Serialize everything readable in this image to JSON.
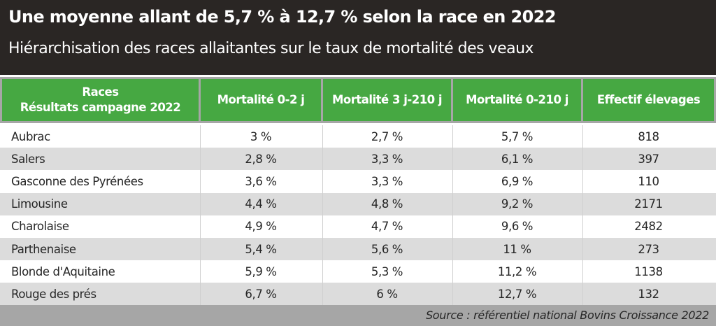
{
  "header": {
    "title": "Une moyenne allant de 5,7 % à 12,7 % selon la race en 2022",
    "subtitle": "Hiérarchisation des races allaitantes sur le taux de mortalité des veaux"
  },
  "table": {
    "columns": {
      "race_line1": "Races",
      "race_line2": "Résultats campagne 2022",
      "mort_0_2": "Mortalité 0-2 j",
      "mort_3_210": "Mortalité 3 j-210 j",
      "mort_0_210": "Mortalité 0-210 j",
      "effectif": "Effectif élevages"
    },
    "rows": [
      [
        "Aubrac",
        "3 %",
        "2,7 %",
        "5,7 %",
        "818"
      ],
      [
        "Salers",
        "2,8 %",
        "3,3 %",
        "6,1 %",
        "397"
      ],
      [
        "Gasconne des Pyrénées",
        "3,6 %",
        "3,3 %",
        "6,9 %",
        "110"
      ],
      [
        "Limousine",
        "4,4 %",
        "4,8 %",
        "9,2 %",
        "2171"
      ],
      [
        "Charolaise",
        "4,9 %",
        "4,7 %",
        "9,6 %",
        "2482"
      ],
      [
        "Parthenaise",
        "5,4 %",
        "5,6 %",
        "11 %",
        "273"
      ],
      [
        "Blonde d'Aquitaine",
        "5,9 %",
        "5,3 %",
        "11,2 %",
        "1138"
      ],
      [
        "Rouge des prés",
        "6,7 %",
        "6 %",
        "12,7 %",
        "132"
      ]
    ]
  },
  "footer": {
    "source": "Source : référentiel national Bovins Croissance 2022"
  },
  "colors": {
    "header_bg": "#2a2624",
    "column_header_bg": "#46a842",
    "band_gray": "#a6a6a6",
    "row_alt": "#dcdcdc"
  }
}
